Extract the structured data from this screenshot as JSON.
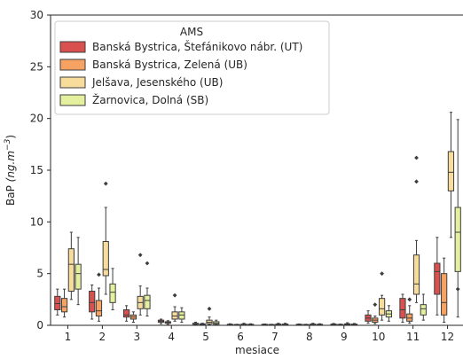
{
  "chart_data": {
    "type": "boxplot",
    "xlabel": "mesiace",
    "ylabel": {
      "main": "BaP",
      "unit_prefix": "(ng.m",
      "unit_exp": "−3",
      "unit_suffix": ")"
    },
    "ylim": [
      0,
      30
    ],
    "yticks": [
      0,
      5,
      10,
      15,
      20,
      25,
      30
    ],
    "categories": [
      "1",
      "2",
      "3",
      "4",
      "5",
      "6",
      "7",
      "8",
      "9",
      "10",
      "11",
      "12"
    ],
    "legend": {
      "title": "AMS",
      "position": "top-left"
    },
    "series": [
      {
        "name": "Banská Bystrica, Štefánikovo nábr. (UT)",
        "color": "#d8514f",
        "boxes": [
          {
            "min": 1.0,
            "q1": 1.5,
            "median": 2.1,
            "q3": 2.8,
            "max": 3.5,
            "outliers": []
          },
          {
            "min": 0.6,
            "q1": 1.3,
            "median": 2.2,
            "q3": 3.3,
            "max": 3.9,
            "outliers": []
          },
          {
            "min": 0.4,
            "q1": 0.8,
            "median": 1.0,
            "q3": 1.5,
            "max": 1.9,
            "outliers": []
          },
          {
            "min": 0.15,
            "q1": 0.3,
            "median": 0.4,
            "q3": 0.5,
            "max": 0.6,
            "outliers": []
          },
          {
            "min": 0.05,
            "q1": 0.1,
            "median": 0.15,
            "q3": 0.2,
            "max": 0.3,
            "outliers": []
          },
          {
            "min": 0.02,
            "q1": 0.05,
            "median": 0.08,
            "q3": 0.1,
            "max": 0.15,
            "outliers": []
          },
          {
            "min": 0.02,
            "q1": 0.05,
            "median": 0.07,
            "q3": 0.1,
            "max": 0.13,
            "outliers": []
          },
          {
            "min": 0.02,
            "q1": 0.05,
            "median": 0.07,
            "q3": 0.1,
            "max": 0.13,
            "outliers": []
          },
          {
            "min": 0.02,
            "q1": 0.05,
            "median": 0.08,
            "q3": 0.12,
            "max": 0.18,
            "outliers": []
          },
          {
            "min": 0.2,
            "q1": 0.4,
            "median": 0.7,
            "q3": 1.0,
            "max": 1.4,
            "outliers": []
          },
          {
            "min": 0.3,
            "q1": 0.7,
            "median": 1.5,
            "q3": 2.6,
            "max": 3.0,
            "outliers": []
          },
          {
            "min": 1.0,
            "q1": 3.0,
            "median": 5.2,
            "q3": 6.0,
            "max": 8.5,
            "outliers": []
          }
        ]
      },
      {
        "name": "Banská Bystrica, Zelená (UB)",
        "color": "#f5a262",
        "boxes": [
          {
            "min": 0.8,
            "q1": 1.3,
            "median": 1.8,
            "q3": 2.6,
            "max": 3.5,
            "outliers": []
          },
          {
            "min": 0.4,
            "q1": 0.9,
            "median": 1.4,
            "q3": 2.4,
            "max": 3.6,
            "outliers": [
              4.9
            ]
          },
          {
            "min": 0.3,
            "q1": 0.6,
            "median": 0.8,
            "q3": 1.0,
            "max": 1.3,
            "outliers": []
          },
          {
            "min": 0.1,
            "q1": 0.2,
            "median": 0.3,
            "q3": 0.35,
            "max": 0.45,
            "outliers": []
          },
          {
            "min": 0.03,
            "q1": 0.07,
            "median": 0.1,
            "q3": 0.15,
            "max": 0.2,
            "outliers": []
          },
          {
            "min": 0.02,
            "q1": 0.04,
            "median": 0.06,
            "q3": 0.08,
            "max": 0.1,
            "outliers": []
          },
          {
            "min": 0.02,
            "q1": 0.04,
            "median": 0.06,
            "q3": 0.08,
            "max": 0.1,
            "outliers": []
          },
          {
            "min": 0.02,
            "q1": 0.04,
            "median": 0.06,
            "q3": 0.08,
            "max": 0.1,
            "outliers": []
          },
          {
            "min": 0.02,
            "q1": 0.04,
            "median": 0.06,
            "q3": 0.09,
            "max": 0.12,
            "outliers": []
          },
          {
            "min": 0.15,
            "q1": 0.3,
            "median": 0.5,
            "q3": 0.7,
            "max": 0.9,
            "outliers": [
              2.0
            ]
          },
          {
            "min": 0.2,
            "q1": 0.4,
            "median": 0.7,
            "q3": 1.1,
            "max": 1.9,
            "outliers": [
              2.5
            ]
          },
          {
            "min": 0.3,
            "q1": 1.0,
            "median": 2.2,
            "q3": 5.0,
            "max": 6.5,
            "outliers": []
          }
        ]
      },
      {
        "name": "Jelšava, Jesenského (UB)",
        "color": "#f7dc9b",
        "boxes": [
          {
            "min": 2.5,
            "q1": 3.3,
            "median": 5.9,
            "q3": 7.4,
            "max": 9.0,
            "outliers": []
          },
          {
            "min": 3.0,
            "q1": 4.8,
            "median": 5.4,
            "q3": 8.1,
            "max": 11.4,
            "outliers": [
              13.7
            ]
          },
          {
            "min": 1.0,
            "q1": 1.6,
            "median": 2.2,
            "q3": 2.8,
            "max": 3.8,
            "outliers": [
              6.8
            ]
          },
          {
            "min": 0.4,
            "q1": 0.6,
            "median": 0.9,
            "q3": 1.3,
            "max": 1.8,
            "outliers": [
              2.9
            ]
          },
          {
            "min": 0.05,
            "q1": 0.15,
            "median": 0.3,
            "q3": 0.5,
            "max": 0.8,
            "outliers": [
              1.6
            ]
          },
          {
            "min": 0.02,
            "q1": 0.05,
            "median": 0.08,
            "q3": 0.12,
            "max": 0.2,
            "outliers": []
          },
          {
            "min": 0.02,
            "q1": 0.05,
            "median": 0.08,
            "q3": 0.12,
            "max": 0.2,
            "outliers": []
          },
          {
            "min": 0.02,
            "q1": 0.05,
            "median": 0.08,
            "q3": 0.12,
            "max": 0.2,
            "outliers": []
          },
          {
            "min": 0.02,
            "q1": 0.06,
            "median": 0.1,
            "q3": 0.15,
            "max": 0.25,
            "outliers": []
          },
          {
            "min": 0.5,
            "q1": 1.0,
            "median": 1.6,
            "q3": 2.6,
            "max": 2.9,
            "outliers": [
              5.0
            ]
          },
          {
            "min": 2.2,
            "q1": 3.0,
            "median": 4.0,
            "q3": 6.8,
            "max": 8.2,
            "outliers": [
              13.9,
              16.2
            ]
          },
          {
            "min": 8.5,
            "q1": 13.0,
            "median": 14.8,
            "q3": 16.8,
            "max": 20.6,
            "outliers": []
          }
        ]
      },
      {
        "name": "Žarnovica, Dolná (SB)",
        "color": "#e4f09e",
        "boxes": [
          {
            "min": 2.0,
            "q1": 3.5,
            "median": 5.0,
            "q3": 5.9,
            "max": 8.5,
            "outliers": []
          },
          {
            "min": 1.5,
            "q1": 2.2,
            "median": 3.2,
            "q3": 4.0,
            "max": 5.5,
            "outliers": []
          },
          {
            "min": 0.9,
            "q1": 1.6,
            "median": 2.4,
            "q3": 2.9,
            "max": 3.6,
            "outliers": [
              6.0
            ]
          },
          {
            "min": 0.3,
            "q1": 0.6,
            "median": 1.0,
            "q3": 1.3,
            "max": 1.7,
            "outliers": []
          },
          {
            "min": 0.05,
            "q1": 0.1,
            "median": 0.2,
            "q3": 0.35,
            "max": 0.5,
            "outliers": []
          },
          {
            "min": 0.02,
            "q1": 0.04,
            "median": 0.07,
            "q3": 0.1,
            "max": 0.15,
            "outliers": []
          },
          {
            "min": 0.02,
            "q1": 0.05,
            "median": 0.08,
            "q3": 0.12,
            "max": 0.2,
            "outliers": []
          },
          {
            "min": 0.02,
            "q1": 0.04,
            "median": 0.07,
            "q3": 0.1,
            "max": 0.15,
            "outliers": []
          },
          {
            "min": 0.02,
            "q1": 0.05,
            "median": 0.08,
            "q3": 0.12,
            "max": 0.18,
            "outliers": []
          },
          {
            "min": 0.4,
            "q1": 0.8,
            "median": 1.1,
            "q3": 1.4,
            "max": 1.9,
            "outliers": []
          },
          {
            "min": 0.5,
            "q1": 1.0,
            "median": 1.6,
            "q3": 2.0,
            "max": 3.0,
            "outliers": []
          },
          {
            "min": 0.8,
            "q1": 5.2,
            "median": 9.0,
            "q3": 11.4,
            "max": 19.9,
            "outliers": [
              3.5
            ]
          }
        ]
      }
    ]
  }
}
